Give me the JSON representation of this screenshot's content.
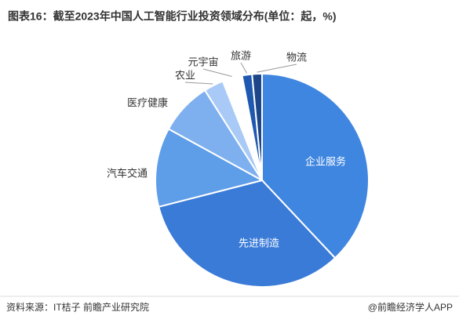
{
  "chart_data": {
    "type": "pie",
    "title": "图表16：截至2023年中国人工智能行业投资领域分布(单位：起，%)",
    "categories": [
      "企业服务",
      "先进制造",
      "汽车交通",
      "医疗健康",
      "农业",
      "元宇宙",
      "旅游",
      "物流"
    ],
    "values": [
      38,
      33,
      12,
      8,
      3,
      3,
      1.5,
      1.5
    ],
    "colors": [
      "#3f86e0",
      "#3a7bd8",
      "#5e9de8",
      "#7eb0ef",
      "#a9caf6",
      "#ffffff",
      "#1f58b0",
      "#1c4688"
    ],
    "source": "资料来源：IT桔子 前瞻产业研究院",
    "credit": "@前瞻经济学人APP"
  }
}
